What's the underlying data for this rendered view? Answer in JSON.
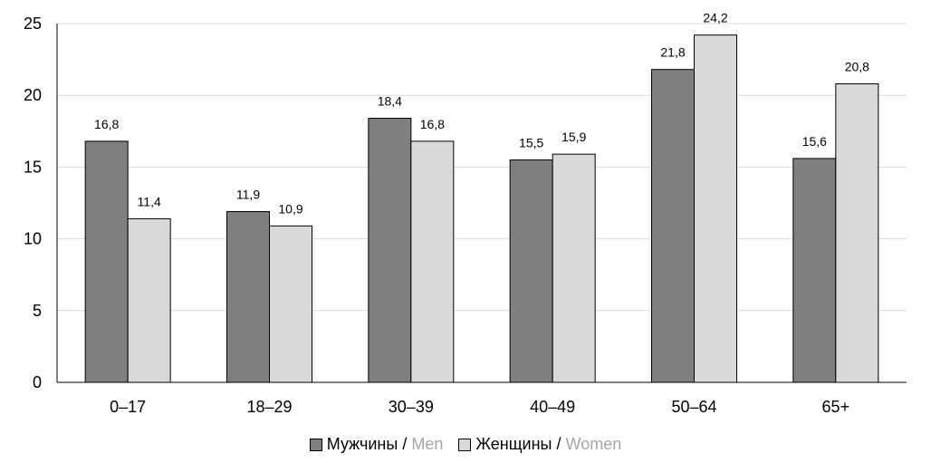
{
  "chart_data": {
    "type": "bar",
    "categories": [
      "0–17",
      "18–29",
      "30–39",
      "40–49",
      "50–64",
      "65+"
    ],
    "series": [
      {
        "name": "Мужчины / Men",
        "name_ru": "Мужчины",
        "name_en": "Men",
        "color": "#7f7f7f",
        "values": [
          16.8,
          11.9,
          18.4,
          15.5,
          21.8,
          15.6
        ],
        "labels": [
          "16,8",
          "11,9",
          "18,4",
          "15,5",
          "21,8",
          "15,6"
        ]
      },
      {
        "name": "Женщины / Women",
        "name_ru": "Женщины",
        "name_en": "Women",
        "color": "#d9d9d9",
        "values": [
          11.4,
          10.9,
          16.8,
          15.9,
          24.2,
          20.8
        ],
        "labels": [
          "11,4",
          "10,9",
          "16,8",
          "15,9",
          "24,2",
          "20,8"
        ]
      }
    ],
    "ylim": [
      0,
      25
    ],
    "yticks": [
      0,
      5,
      10,
      15,
      20,
      25
    ],
    "grid": true,
    "legend": "bottom",
    "title": "",
    "xlabel": "",
    "ylabel": ""
  },
  "legend": {
    "sep": "/"
  }
}
